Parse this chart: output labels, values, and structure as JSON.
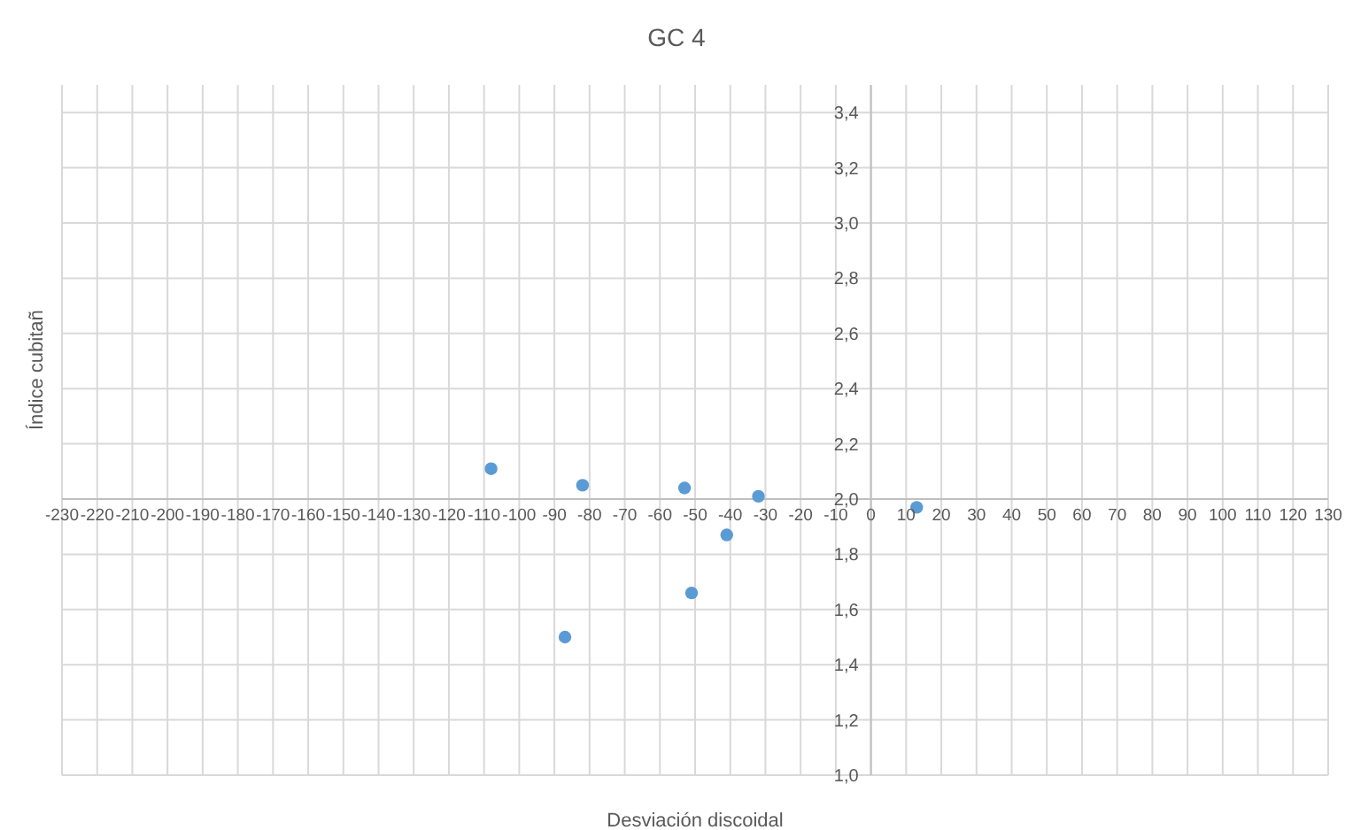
{
  "chart_data": {
    "type": "scatter",
    "title": "GC 4",
    "xlabel": "Desviación discoidal",
    "ylabel": "Índice cubitañ",
    "x": [
      -108,
      -82,
      -53,
      -32,
      13,
      -41,
      -51,
      -87
    ],
    "series": [
      {
        "color": "#5b9bd5",
        "values": [
          2.11,
          2.05,
          2.04,
          2.01,
          1.97,
          1.87,
          1.66,
          1.5
        ]
      }
    ],
    "xlim": [
      -230,
      130
    ],
    "xticks": [
      -230,
      -220,
      -210,
      -200,
      -190,
      -180,
      -170,
      -160,
      -150,
      -140,
      -130,
      -120,
      -110,
      -100,
      -90,
      -80,
      -70,
      -60,
      -50,
      -40,
      -30,
      -20,
      -10,
      0,
      10,
      20,
      30,
      40,
      50,
      60,
      70,
      80,
      90,
      100,
      110,
      120,
      130
    ],
    "ylim": [
      1.0,
      3.5
    ],
    "yticks": [
      {
        "value": 1.0,
        "label": "1,0"
      },
      {
        "value": 1.2,
        "label": "1,2"
      },
      {
        "value": 1.4,
        "label": "1,4"
      },
      {
        "value": 1.6,
        "label": "1,6"
      },
      {
        "value": 1.8,
        "label": "1,8"
      },
      {
        "value": 2.0,
        "label": "2,0"
      },
      {
        "value": 2.2,
        "label": "2,2"
      },
      {
        "value": 2.4,
        "label": "2,4"
      },
      {
        "value": 2.6,
        "label": "2,6"
      },
      {
        "value": 2.8,
        "label": "2,8"
      },
      {
        "value": 3.0,
        "label": "3,0"
      },
      {
        "value": 3.2,
        "label": "3,2"
      },
      {
        "value": 3.4,
        "label": "3,4"
      }
    ],
    "grid": true,
    "marker": "circle",
    "legend": false
  }
}
